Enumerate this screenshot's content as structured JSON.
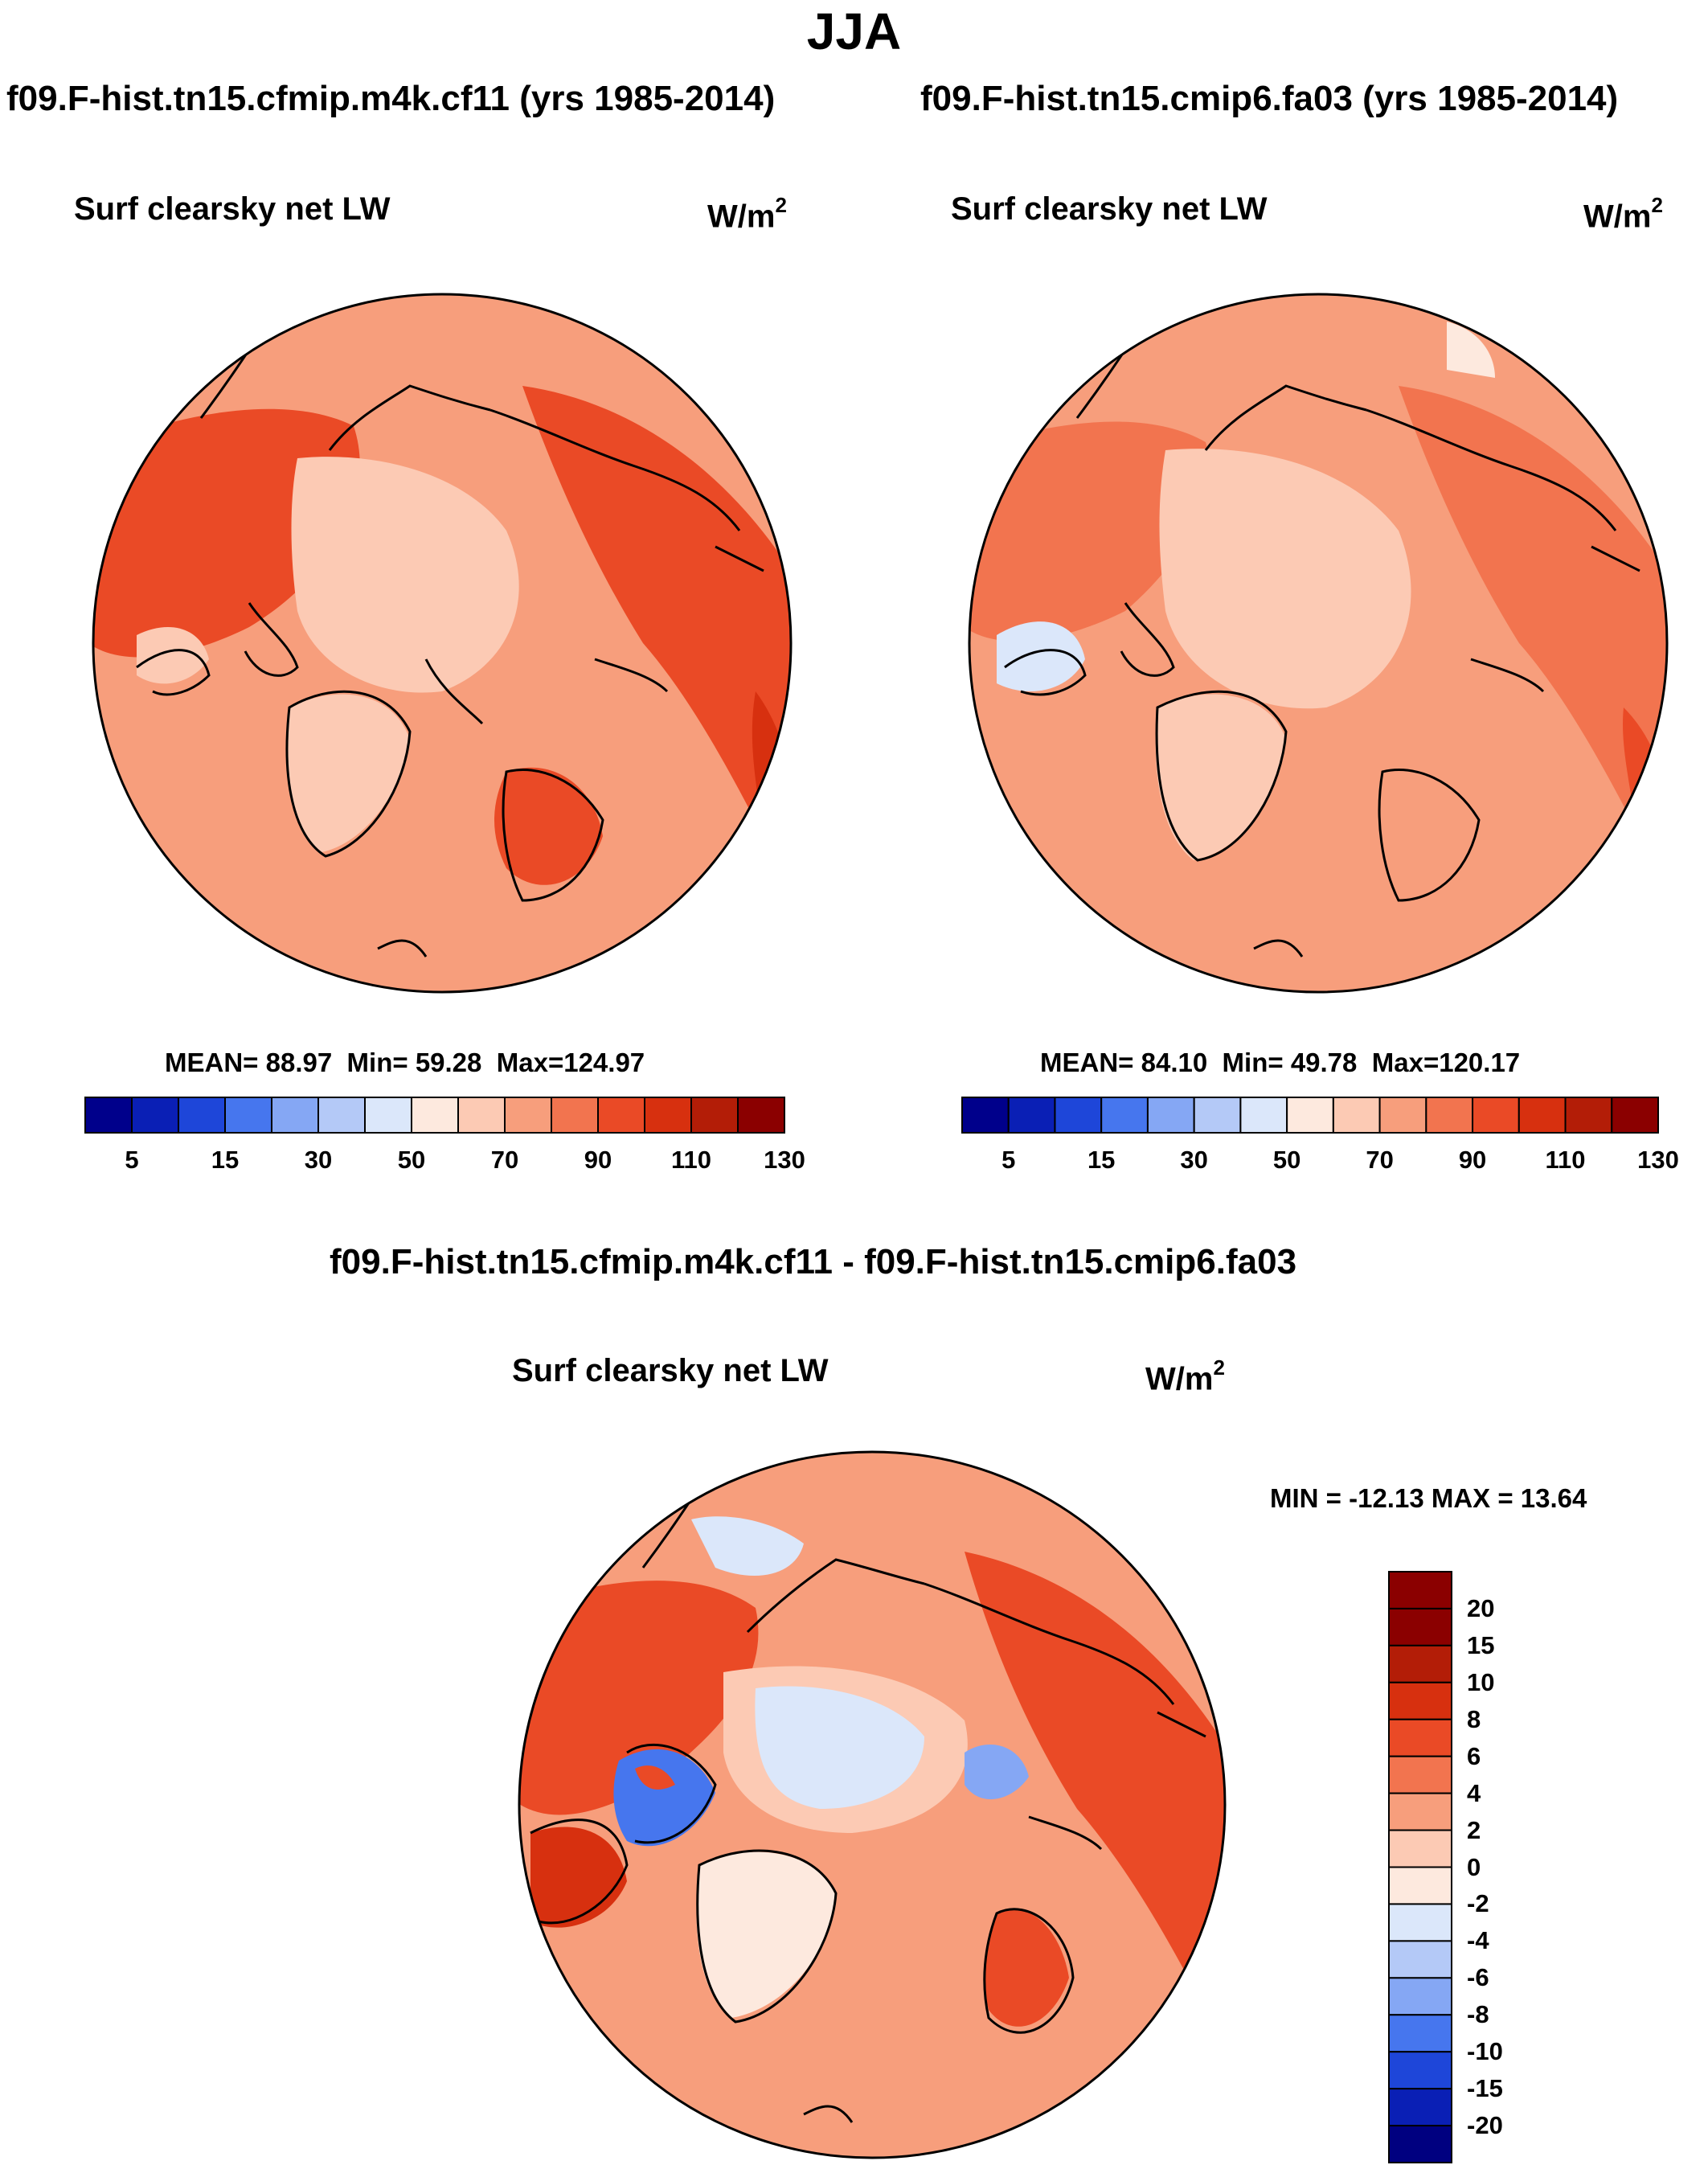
{
  "title": "JJA",
  "panels": [
    {
      "run": "f09.F-hist.tn15.cfmip.m4k.cf11 (yrs 1985-2014)",
      "variable": "Surf clearsky net LW",
      "units": "W/m",
      "units_exp": "2",
      "stats": {
        "mean_label": "MEAN=",
        "mean": "88.97",
        "min_label": "Min=",
        "min": "59.28",
        "max_label": "Max=",
        "max": "124.97"
      }
    },
    {
      "run": "f09.F-hist.tn15.cmip6.fa03 (yrs 1985-2014)",
      "variable": "Surf clearsky net LW",
      "units": "W/m",
      "units_exp": "2",
      "stats": {
        "mean_label": "MEAN=",
        "mean": "84.10",
        "min_label": "Min=",
        "min": "49.78",
        "max_label": "Max=",
        "max": "120.17"
      }
    }
  ],
  "difference": {
    "run": "f09.F-hist.tn15.cfmip.m4k.cf11 - f09.F-hist.tn15.cmip6.fa03",
    "variable": "Surf clearsky net LW",
    "units": "W/m",
    "units_exp": "2",
    "stats": "MIN = -12.13 MAX =  13.64"
  },
  "colorbar_abs": {
    "colors": [
      "#00008b",
      "#0a1fb5",
      "#1e46d9",
      "#4676ee",
      "#85a7f4",
      "#b4c9f7",
      "#dbe7fa",
      "#fde9de",
      "#fccab4",
      "#f79e7c",
      "#f2744f",
      "#ea4a26",
      "#d7300f",
      "#b31d07",
      "#8b0000"
    ],
    "tick_labels": [
      "5",
      "15",
      "30",
      "50",
      "70",
      "90",
      "110",
      "130"
    ]
  },
  "colorbar_diff": {
    "colors": [
      "#8b0000",
      "#b31d07",
      "#d7300f",
      "#ea4a26",
      "#f2744f",
      "#f79e7c",
      "#fccab4",
      "#fde9de",
      "#dbe7fa",
      "#b4c9f7",
      "#85a7f4",
      "#4676ee",
      "#1e46d9",
      "#0a1fb5",
      "#00008b"
    ],
    "tick_labels": [
      "20",
      "15",
      "10",
      "8",
      "6",
      "4",
      "2",
      "0",
      "-2",
      "-4",
      "-6",
      "-8",
      "-10",
      "-15",
      "-20"
    ]
  },
  "chart_data": [
    {
      "type": "heatmap",
      "projection": "north-polar-stereographic",
      "title": "f09.F-hist.tn15.cfmip.m4k.cf11 (yrs 1985-2014)",
      "variable": "Surf clearsky net LW",
      "units": "W/m2",
      "levels": [
        5,
        10,
        15,
        20,
        30,
        40,
        50,
        60,
        70,
        80,
        90,
        100,
        110,
        120,
        130
      ],
      "mean": 88.97,
      "min": 59.28,
      "max": 124.97
    },
    {
      "type": "heatmap",
      "projection": "north-polar-stereographic",
      "title": "f09.F-hist.tn15.cmip6.fa03 (yrs 1985-2014)",
      "variable": "Surf clearsky net LW",
      "units": "W/m2",
      "levels": [
        5,
        10,
        15,
        20,
        30,
        40,
        50,
        60,
        70,
        80,
        90,
        100,
        110,
        120,
        130
      ],
      "mean": 84.1,
      "min": 49.78,
      "max": 120.17
    },
    {
      "type": "heatmap",
      "projection": "north-polar-stereographic",
      "title": "f09.F-hist.tn15.cfmip.m4k.cf11 - f09.F-hist.tn15.cmip6.fa03",
      "variable": "Surf clearsky net LW",
      "units": "W/m2",
      "levels": [
        -20,
        -15,
        -10,
        -8,
        -6,
        -4,
        -2,
        0,
        2,
        4,
        6,
        8,
        10,
        15,
        20
      ],
      "min": -12.13,
      "max": 13.64
    }
  ]
}
